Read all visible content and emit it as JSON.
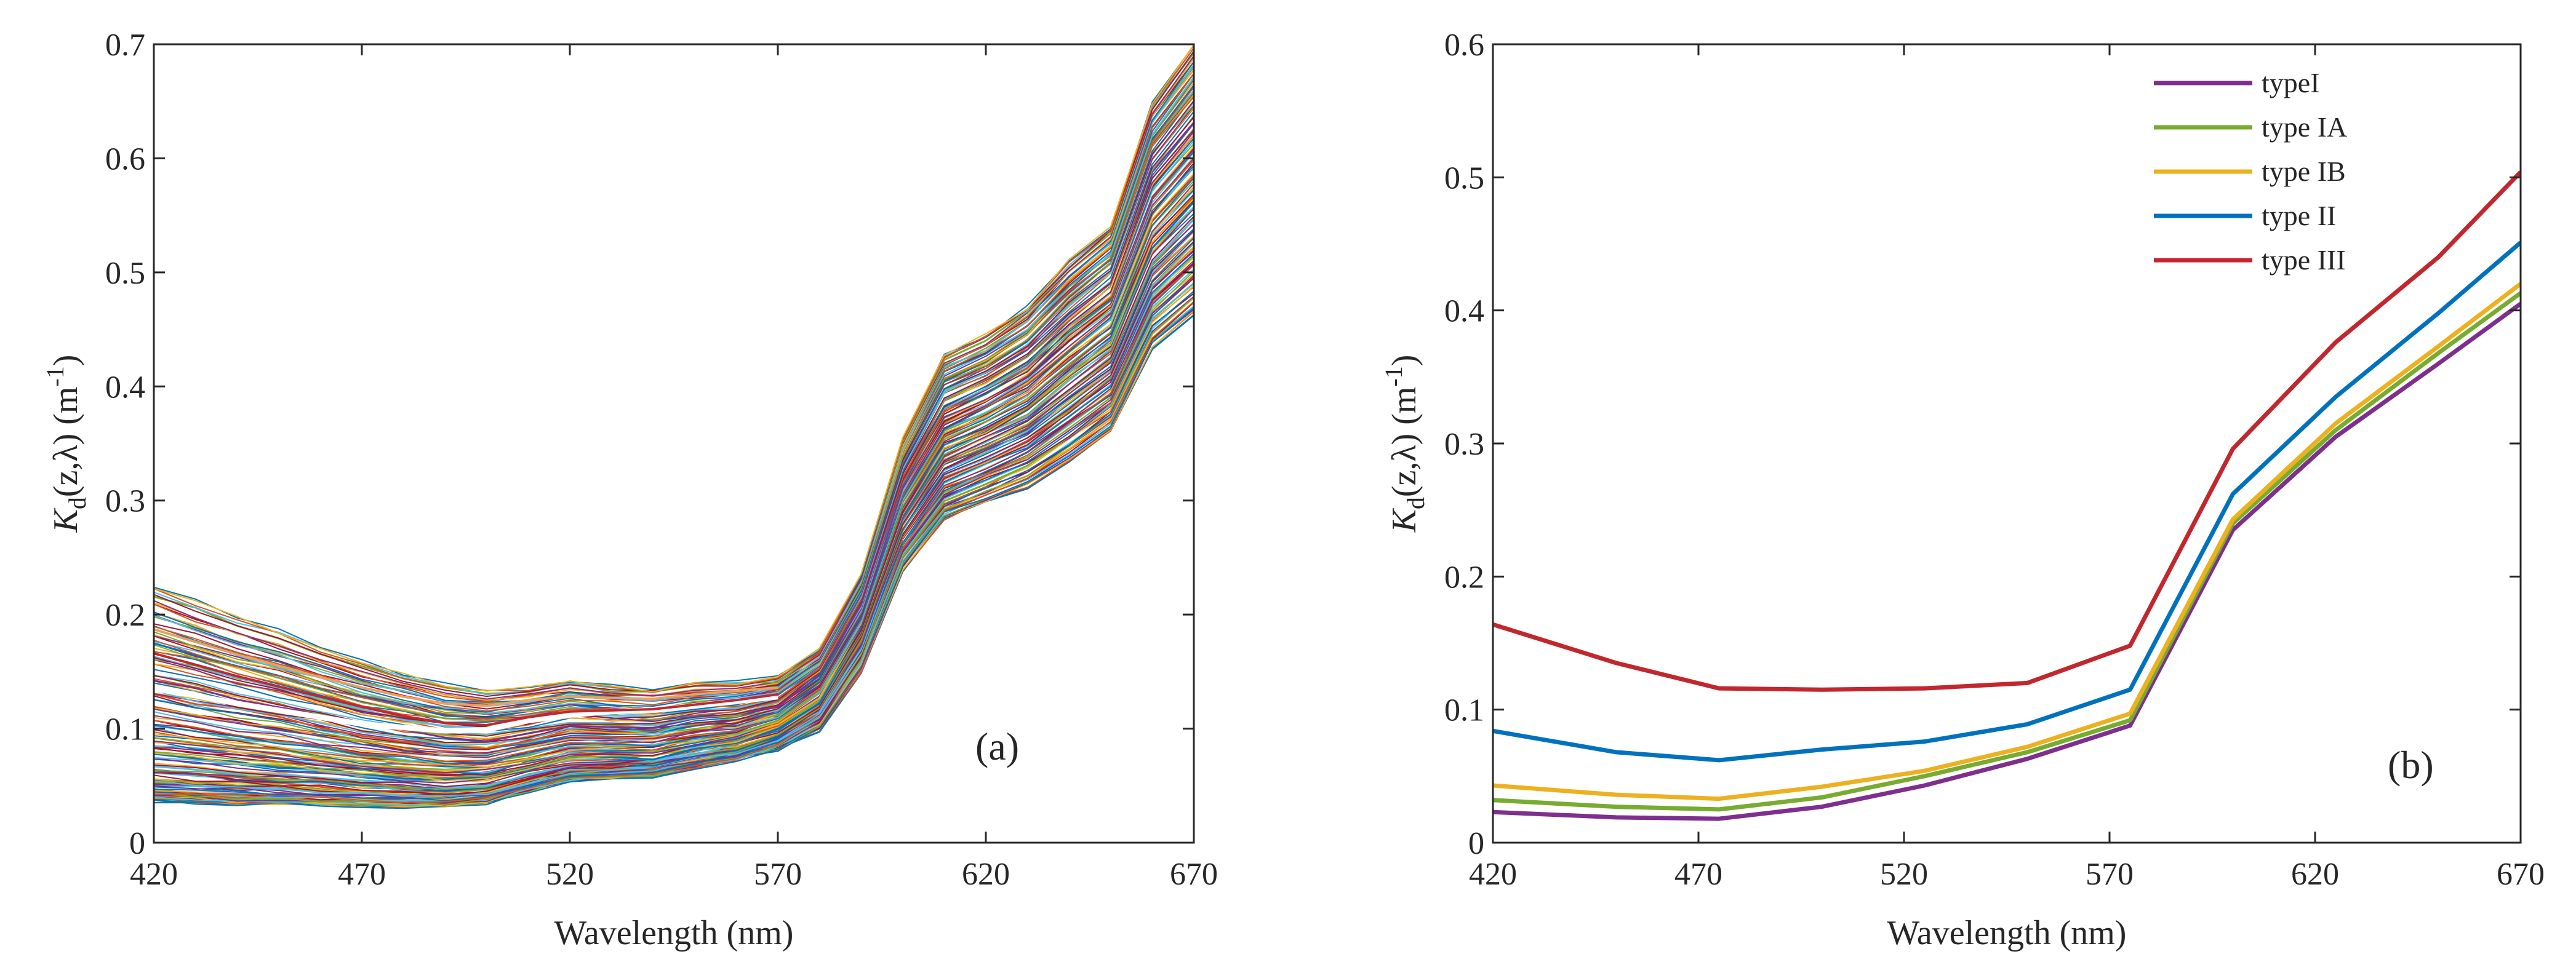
{
  "chart_data": [
    {
      "type": "line",
      "panel_label": "(a)",
      "description_series": "many spectra",
      "xlabel": "Wavelength (nm)",
      "ylabel": {
        "base": "K",
        "sub": "d",
        "arg": "(z,λ) (m",
        "sup": "-1",
        "close": ")"
      },
      "xlim": [
        420,
        670
      ],
      "ylim": [
        0,
        0.7
      ],
      "xticks": [
        420,
        470,
        520,
        570,
        620,
        670
      ],
      "yticks": [
        0,
        0.1,
        0.2,
        0.3,
        0.4,
        0.5,
        0.6,
        0.7
      ],
      "ytick_labels": [
        "0",
        "0.1",
        "0.2",
        "0.3",
        "0.4",
        "0.5",
        "0.6",
        "0.7"
      ],
      "x": [
        420,
        430,
        440,
        450,
        460,
        470,
        480,
        490,
        500,
        510,
        520,
        530,
        540,
        550,
        560,
        570,
        580,
        590,
        600,
        610,
        620,
        630,
        640,
        650,
        660,
        670
      ],
      "envelope_low": [
        0.036,
        0.035,
        0.034,
        0.034,
        0.033,
        0.032,
        0.032,
        0.032,
        0.035,
        0.045,
        0.054,
        0.056,
        0.058,
        0.066,
        0.073,
        0.082,
        0.099,
        0.148,
        0.238,
        0.283,
        0.298,
        0.312,
        0.334,
        0.36,
        0.432,
        0.462
      ],
      "envelope_high": [
        0.225,
        0.212,
        0.198,
        0.186,
        0.172,
        0.159,
        0.148,
        0.139,
        0.134,
        0.137,
        0.142,
        0.138,
        0.135,
        0.14,
        0.141,
        0.145,
        0.17,
        0.235,
        0.355,
        0.428,
        0.445,
        0.47,
        0.51,
        0.54,
        0.65,
        0.7
      ],
      "highlight_series": [
        {
          "name": "white",
          "color": "#ffffff",
          "values": [
            0.135,
            0.129,
            0.122,
            0.116,
            0.11,
            0.104,
            0.101,
            0.098,
            0.099,
            0.107,
            0.112,
            0.115,
            0.116,
            0.12,
            0.124,
            0.128
          ]
        },
        {
          "name": "orange",
          "color": "#e8a15e",
          "values": [
            0.187,
            0.176,
            0.165,
            0.155,
            0.145,
            0.136,
            0.128,
            0.122,
            0.12,
            0.125,
            0.128,
            0.127,
            0.126,
            0.13,
            0.133,
            0.136
          ]
        },
        {
          "name": "red",
          "color": "#c1272d",
          "values": [
            0.166,
            0.156,
            0.146,
            0.137,
            0.128,
            0.119,
            0.111,
            0.105,
            0.103,
            0.11,
            0.115,
            0.116,
            0.117,
            0.121,
            0.125,
            0.13
          ]
        }
      ]
    },
    {
      "type": "line",
      "panel_label": "(b)",
      "xlabel": "Wavelength (nm)",
      "ylabel": {
        "base": "K",
        "sub": "d",
        "arg": "(z,λ) (m",
        "sup": "-1",
        "close": ")"
      },
      "xlim": [
        420,
        670
      ],
      "ylim": [
        0,
        0.6
      ],
      "xticks": [
        420,
        470,
        520,
        570,
        620,
        670
      ],
      "yticks": [
        0,
        0.1,
        0.2,
        0.3,
        0.4,
        0.5,
        0.6
      ],
      "ytick_labels": [
        "0",
        "0.1",
        "0.2",
        "0.3",
        "0.4",
        "0.5",
        "0.6"
      ],
      "legend_position": "top-right",
      "x": [
        420,
        450,
        475,
        500,
        525,
        550,
        575,
        600,
        625,
        650,
        670
      ],
      "series": [
        {
          "name": "typeI",
          "color": "#7e2f8e",
          "values": [
            0.023,
            0.019,
            0.018,
            0.027,
            0.043,
            0.063,
            0.088,
            0.235,
            0.305,
            0.36,
            0.405
          ]
        },
        {
          "name": "type IA",
          "color": "#77ac30",
          "values": [
            0.032,
            0.027,
            0.025,
            0.034,
            0.05,
            0.068,
            0.092,
            0.24,
            0.31,
            0.368,
            0.413
          ]
        },
        {
          "name": "type IB",
          "color": "#edb120",
          "values": [
            0.043,
            0.036,
            0.033,
            0.042,
            0.054,
            0.072,
            0.097,
            0.243,
            0.315,
            0.373,
            0.42
          ]
        },
        {
          "name": "type II",
          "color": "#0072bd",
          "values": [
            0.084,
            0.068,
            0.062,
            0.07,
            0.076,
            0.089,
            0.115,
            0.262,
            0.335,
            0.398,
            0.451
          ]
        },
        {
          "name": "type III",
          "color": "#c1272d",
          "values": [
            0.164,
            0.135,
            0.116,
            0.115,
            0.116,
            0.12,
            0.148,
            0.296,
            0.376,
            0.44,
            0.504
          ]
        }
      ]
    }
  ]
}
